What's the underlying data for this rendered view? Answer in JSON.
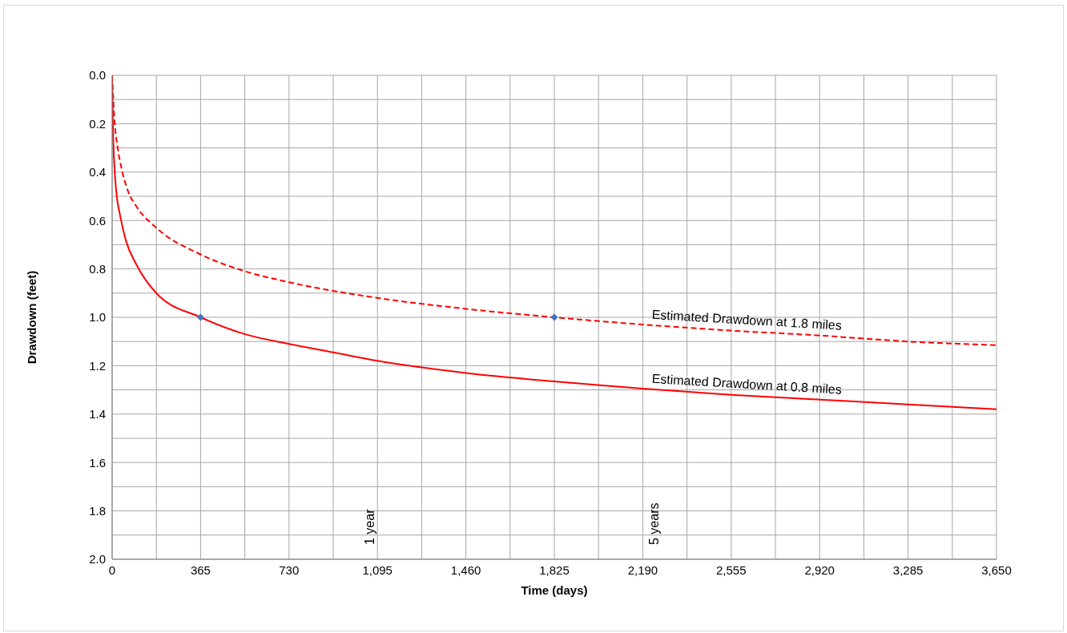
{
  "chart_data": {
    "type": "line",
    "xlabel": "Time (days)",
    "ylabel": "Drawdown (feet)",
    "xlim": [
      0,
      3650
    ],
    "xticks": [
      0,
      {
        "value": 182.5,
        "label": null
      },
      365,
      {
        "value": 547.5,
        "label": null
      },
      730,
      {
        "value": 912.5,
        "label": null
      },
      {
        "value": 1095,
        "label": "1,095"
      },
      {
        "value": 1277.5,
        "label": null
      },
      {
        "value": 1460,
        "label": "1,460"
      },
      {
        "value": 1642.5,
        "label": null
      },
      {
        "value": 1825,
        "label": "1,825"
      },
      {
        "value": 2007.5,
        "label": null
      },
      {
        "value": 2190,
        "label": "2,190"
      },
      {
        "value": 2372.5,
        "label": null
      },
      {
        "value": 2555,
        "label": "2,555"
      },
      {
        "value": 2737.5,
        "label": null
      },
      {
        "value": 2920,
        "label": "2,920"
      },
      {
        "value": 3102.5,
        "label": null
      },
      {
        "value": 3285,
        "label": "3,285"
      },
      {
        "value": 3467.5,
        "label": null
      },
      {
        "value": 3650,
        "label": "3,650"
      }
    ],
    "ylim": [
      2,
      0
    ],
    "yticks": [
      {
        "value": 0,
        "label": "0.0"
      },
      {
        "value": 0.1,
        "label": null
      },
      {
        "value": 0.2,
        "label": "0.2"
      },
      {
        "value": 0.3,
        "label": null
      },
      {
        "value": 0.4,
        "label": "0.4"
      },
      {
        "value": 0.5,
        "label": null
      },
      {
        "value": 0.6,
        "label": "0.6"
      },
      {
        "value": 0.7,
        "label": null
      },
      {
        "value": 0.8,
        "label": "0.8"
      },
      {
        "value": 0.9,
        "label": null
      },
      {
        "value": 1,
        "label": "1.0"
      },
      {
        "value": 1.1,
        "label": null
      },
      {
        "value": 1.2,
        "label": "1.2"
      },
      {
        "value": 1.3,
        "label": null
      },
      {
        "value": 1.4,
        "label": "1.4"
      },
      {
        "value": 1.5,
        "label": null
      },
      {
        "value": 1.6,
        "label": "1.6"
      },
      {
        "value": 1.7,
        "label": null
      },
      {
        "value": 1.8,
        "label": "1.8"
      },
      {
        "value": 1.9,
        "label": null
      },
      {
        "value": 2,
        "label": "2.0"
      }
    ],
    "grid": true,
    "legend": false,
    "series": [
      {
        "name": "Estimated Drawdown at 1.8 miles",
        "color": "#ff0000",
        "line_style": "dashed",
        "marker": "none",
        "x": [
          0,
          10,
          23,
          40,
          66,
          99,
          182,
          365,
          549,
          730,
          1095,
          1460,
          1825,
          2190,
          2555,
          2920,
          3285,
          3650
        ],
        "values": [
          0,
          0.19,
          0.3,
          0.39,
          0.48,
          0.54,
          0.63,
          0.74,
          0.81,
          0.855,
          0.92,
          0.965,
          1,
          1.03,
          1.055,
          1.075,
          1.1,
          1.115
        ]
      },
      {
        "name": "Estimated Drawdown at 0.8 miles",
        "color": "#ff0000",
        "line_style": "solid",
        "marker": "none",
        "x": [
          0,
          3,
          8,
          17,
          33,
          56,
          99,
          182,
          365,
          549,
          730,
          913,
          1095,
          1460,
          1825,
          2190,
          2555,
          2920,
          3285,
          3650
        ],
        "values": [
          0,
          0.2,
          0.35,
          0.48,
          0.58,
          0.68,
          0.78,
          0.9,
          1,
          1.07,
          1.11,
          1.145,
          1.18,
          1.23,
          1.265,
          1.295,
          1.32,
          1.34,
          1.36,
          1.38
        ]
      },
      {
        "type": "scatter",
        "color": "#4472c4",
        "marker": "diamond",
        "x": [
          365,
          1825
        ],
        "values": [
          1,
          1
        ]
      }
    ],
    "annotations": [
      "1 year",
      "5 years"
    ]
  }
}
